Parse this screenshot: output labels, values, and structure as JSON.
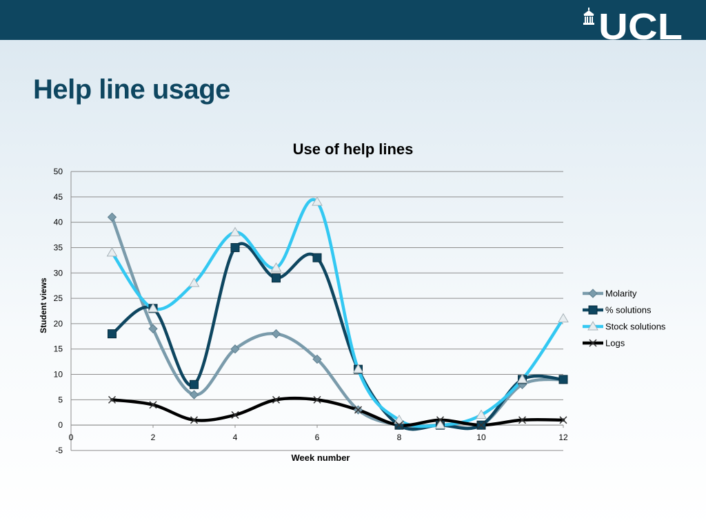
{
  "header": {
    "logo_text": "UCL"
  },
  "slide": {
    "title": "Help line usage"
  },
  "chart_data": {
    "type": "line",
    "title": "Use of help lines",
    "xlabel": "Week number",
    "ylabel": "Student views",
    "xlim": [
      0,
      12
    ],
    "ylim": [
      -5,
      50
    ],
    "x_ticks": [
      0,
      2,
      4,
      6,
      8,
      10,
      12
    ],
    "y_ticks": [
      -5,
      0,
      5,
      10,
      15,
      20,
      25,
      30,
      35,
      40,
      45,
      50
    ],
    "grid": "horizontal",
    "legend_position": "right",
    "smooth": true,
    "x": [
      1,
      2,
      3,
      4,
      5,
      6,
      7,
      8,
      9,
      10,
      11,
      12
    ],
    "series": [
      {
        "name": "Molarity",
        "color": "#7a9bab",
        "marker": "diamond",
        "values": [
          41,
          19,
          6,
          15,
          18,
          13,
          3,
          0,
          0,
          0,
          8,
          9
        ]
      },
      {
        "name": "% solutions",
        "color": "#0e4660",
        "marker": "square",
        "values": [
          18,
          23,
          8,
          35,
          29,
          33,
          11,
          0,
          0,
          0,
          9,
          9
        ]
      },
      {
        "name": "Stock solutions",
        "color": "#33c8f2",
        "marker": "triangle",
        "values": [
          34,
          23,
          28,
          38,
          31,
          44,
          11,
          1,
          0,
          2,
          9,
          21
        ]
      },
      {
        "name": "Logs",
        "color": "#000000",
        "marker": "x",
        "values": [
          5,
          4,
          1,
          2,
          5,
          5,
          3,
          0,
          1,
          0,
          1,
          1
        ]
      }
    ]
  }
}
